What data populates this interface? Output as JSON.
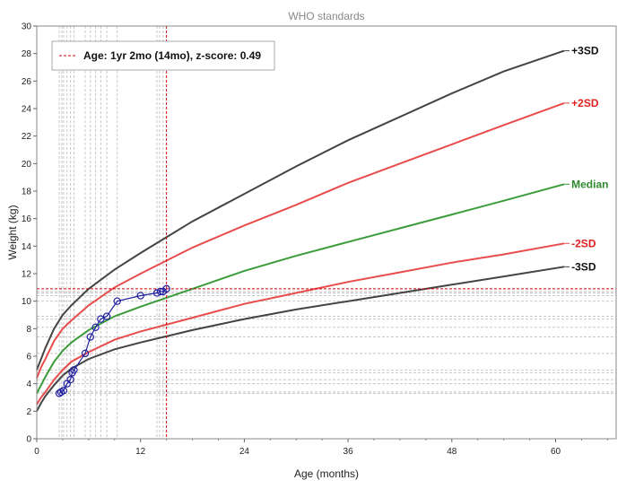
{
  "chart_data": {
    "type": "line",
    "title": "WHO standards",
    "xlabel": "Age (months)",
    "ylabel": "Weight (kg)",
    "xlim": [
      0,
      67
    ],
    "ylim": [
      0,
      30
    ],
    "x_ticks": [
      0,
      12,
      24,
      36,
      48,
      60
    ],
    "y_ticks": [
      0,
      2,
      4,
      6,
      8,
      10,
      12,
      14,
      16,
      18,
      20,
      22,
      24,
      26,
      28,
      30
    ],
    "legend": {
      "position": "top-left",
      "text": "Age: 1yr 2mo (14mo), z-score: 0.49",
      "color": "#cc0000"
    },
    "x_grid": [
      2.6,
      2.9,
      3.1,
      3.5,
      3.9,
      4.3,
      5.6,
      6.2,
      6.8,
      7.4,
      8.1,
      9.3,
      13.9,
      14.2,
      14.6
    ],
    "y_grid": [
      3.3,
      3.4,
      4.0,
      4.3,
      4.8,
      5.0,
      6.2,
      7.4,
      8.1,
      8.7,
      8.9,
      10.0,
      10.4,
      10.6,
      10.7
    ],
    "cursor": {
      "x": 15,
      "y": 10.9
    },
    "series": [
      {
        "name": "+3SD",
        "color": "#444444",
        "x": [
          0,
          0.5,
          1,
          2,
          3,
          4,
          6,
          9,
          12,
          18,
          24,
          30,
          36,
          42,
          48,
          54,
          61
        ],
        "y": [
          5.0,
          5.8,
          6.6,
          8.0,
          9.0,
          9.7,
          10.9,
          12.3,
          13.5,
          15.8,
          17.8,
          19.8,
          21.7,
          23.4,
          25.1,
          26.7,
          28.2
        ]
      },
      {
        "name": "+2SD",
        "color": "#e84c4c",
        "x": [
          0,
          0.5,
          1,
          2,
          3,
          4,
          6,
          9,
          12,
          18,
          24,
          30,
          36,
          42,
          48,
          54,
          61
        ],
        "y": [
          4.4,
          5.2,
          5.8,
          7.1,
          8.0,
          8.6,
          9.7,
          11.0,
          12.0,
          13.9,
          15.5,
          17.0,
          18.6,
          20.0,
          21.4,
          22.8,
          24.4
        ]
      },
      {
        "name": "Median",
        "color": "#3c9c3c",
        "x": [
          0,
          0.5,
          1,
          2,
          3,
          4,
          6,
          9,
          12,
          18,
          24,
          30,
          36,
          42,
          48,
          54,
          61
        ],
        "y": [
          3.3,
          3.9,
          4.5,
          5.6,
          6.4,
          7.0,
          7.9,
          8.9,
          9.6,
          10.9,
          12.2,
          13.3,
          14.3,
          15.3,
          16.3,
          17.3,
          18.5
        ]
      },
      {
        "name": "-2SD",
        "color": "#e84c4c",
        "x": [
          0,
          0.5,
          1,
          2,
          3,
          4,
          6,
          9,
          12,
          18,
          24,
          30,
          36,
          42,
          48,
          54,
          61
        ],
        "y": [
          2.5,
          3.0,
          3.4,
          4.3,
          5.0,
          5.6,
          6.3,
          7.2,
          7.8,
          8.8,
          9.8,
          10.6,
          11.4,
          12.1,
          12.8,
          13.4,
          14.2
        ]
      },
      {
        "name": "-3SD",
        "color": "#444444",
        "x": [
          0,
          0.5,
          1,
          2,
          3,
          4,
          6,
          9,
          12,
          18,
          24,
          30,
          36,
          42,
          48,
          54,
          61
        ],
        "y": [
          2.0,
          2.6,
          3.1,
          3.9,
          4.6,
          5.1,
          5.8,
          6.5,
          7.0,
          7.9,
          8.7,
          9.4,
          10.0,
          10.6,
          11.2,
          11.8,
          12.5
        ]
      },
      {
        "name": "",
        "color": "#2020a0",
        "marker": "circle",
        "x": [
          2.6,
          2.8,
          3.1,
          3.5,
          3.9,
          4.1,
          4.3,
          5.6,
          6.2,
          6.8,
          7.4,
          8.1,
          9.3,
          12.0,
          13.9,
          14.3,
          14.6,
          15.0
        ],
        "y": [
          3.3,
          3.4,
          3.5,
          4.0,
          4.3,
          4.8,
          5.0,
          6.2,
          7.4,
          8.1,
          8.7,
          8.9,
          10.0,
          10.4,
          10.6,
          10.7,
          10.7,
          10.9
        ]
      }
    ]
  }
}
